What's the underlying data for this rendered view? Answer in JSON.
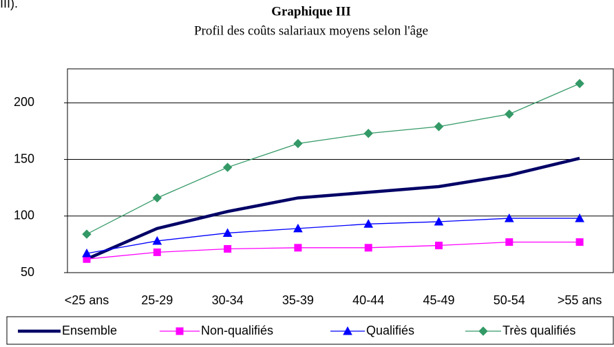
{
  "header_fragment": "III).",
  "chart_data": {
    "type": "line",
    "title": "Graphique III",
    "subtitle": "Profil des coûts salariaux  moyens selon l'âge",
    "categories": [
      "<25 ans",
      "25-29",
      "30-34",
      "35-39",
      "40-44",
      "45-49",
      "50-54",
      ">55 ans"
    ],
    "series": [
      {
        "name": "Ensemble",
        "color": "#000066",
        "marker": "none",
        "values": [
          62,
          89,
          104,
          116,
          121,
          126,
          136,
          151
        ]
      },
      {
        "name": "Non-qualifiés",
        "color": "#ff00ff",
        "marker": "square",
        "values": [
          62,
          68,
          71,
          72,
          72,
          74,
          77,
          77
        ]
      },
      {
        "name": "Qualifiés",
        "color": "#0000ff",
        "marker": "triangle",
        "values": [
          67,
          78,
          85,
          89,
          93,
          95,
          98,
          98
        ]
      },
      {
        "name": "Très qualifiés",
        "color": "#339966",
        "marker": "diamond",
        "values": [
          84,
          116,
          143,
          164,
          173,
          179,
          190,
          217
        ]
      }
    ],
    "ylim": [
      50,
      230
    ],
    "yticks": [
      50,
      100,
      150,
      200
    ],
    "grid": true,
    "legend": "bottom"
  }
}
